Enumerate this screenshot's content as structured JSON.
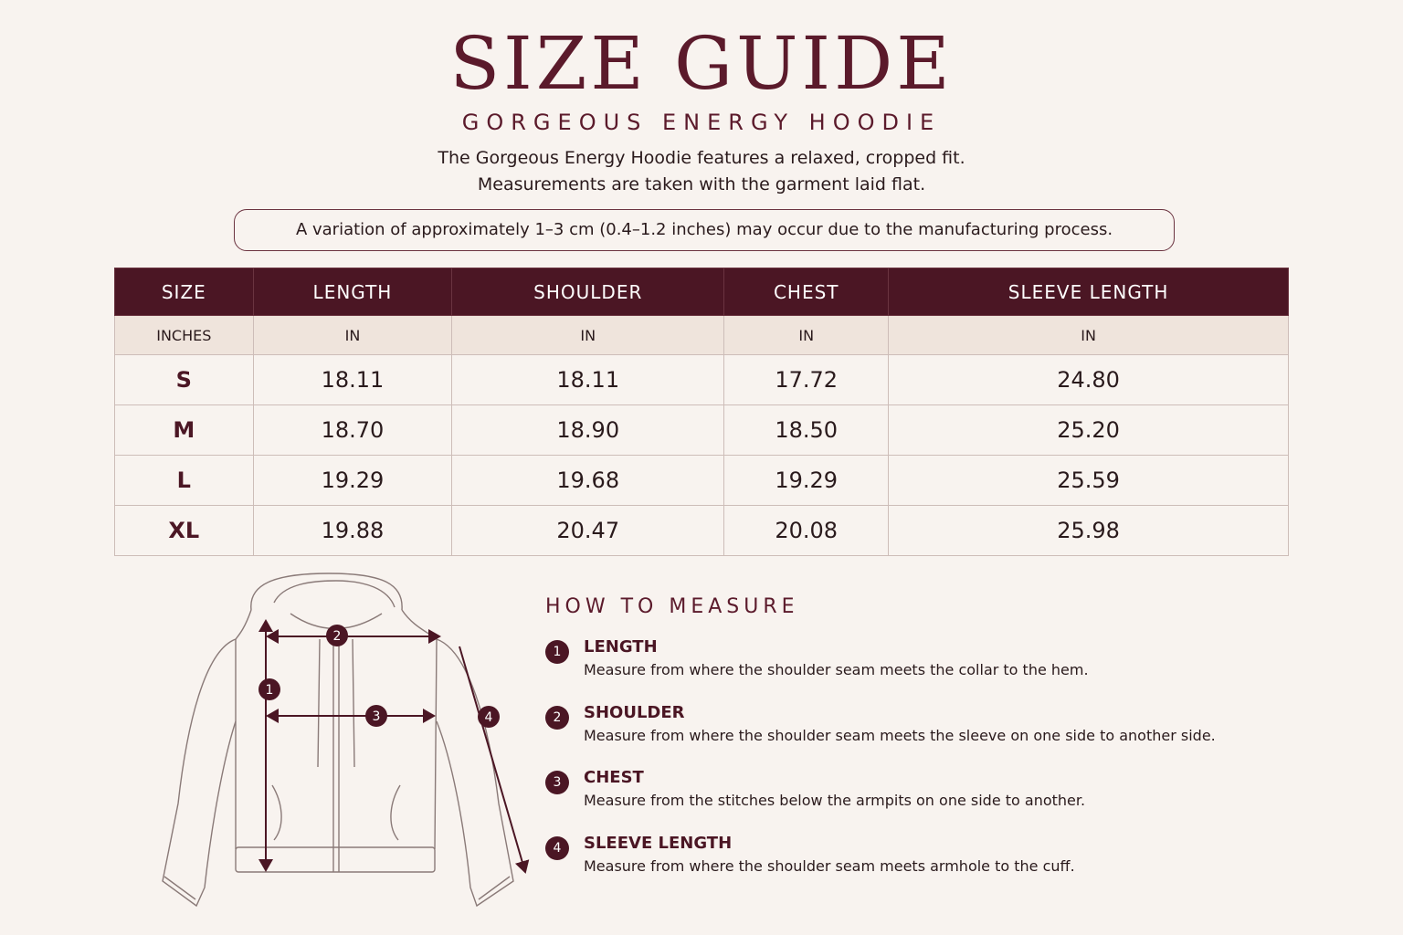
{
  "header": {
    "title": "SIZE GUIDE",
    "subtitle": "GORGEOUS ENERGY HOODIE",
    "description": [
      "The Gorgeous Energy Hoodie features a relaxed, cropped fit.",
      "Measurements are taken with the garment laid flat."
    ],
    "note": "A variation of approximately 1–3 cm (0.4–1.2 inches) may occur due to the manufacturing process."
  },
  "table": {
    "header": [
      "SIZE",
      "LENGTH",
      "SHOULDER",
      "CHEST",
      "SLEEVE LENGTH"
    ],
    "units": [
      "INCHES",
      "IN",
      "IN",
      "IN",
      "IN"
    ],
    "rows": [
      [
        "S",
        "18.11",
        "18.11",
        "17.72",
        "24.80"
      ],
      [
        "M",
        "18.70",
        "18.90",
        "18.50",
        "25.20"
      ],
      [
        "L",
        "19.29",
        "19.68",
        "19.29",
        "25.59"
      ],
      [
        "XL",
        "19.88",
        "20.47",
        "20.08",
        "25.98"
      ]
    ]
  },
  "how_to_measure": {
    "title": "HOW TO MEASURE",
    "items": [
      {
        "number": "1",
        "label": "LENGTH",
        "text": "Measure from where the shoulder seam meets the collar to the hem."
      },
      {
        "number": "2",
        "label": "SHOULDER",
        "text": "Measure from where the shoulder seam meets the sleeve on one side to another side."
      },
      {
        "number": "3",
        "label": "CHEST",
        "text": "Measure from the stitches below the armpits on one side to another."
      },
      {
        "number": "4",
        "label": "SLEEVE LENGTH",
        "text": "Measure from where the shoulder seam meets armhole to the cuff."
      }
    ]
  }
}
